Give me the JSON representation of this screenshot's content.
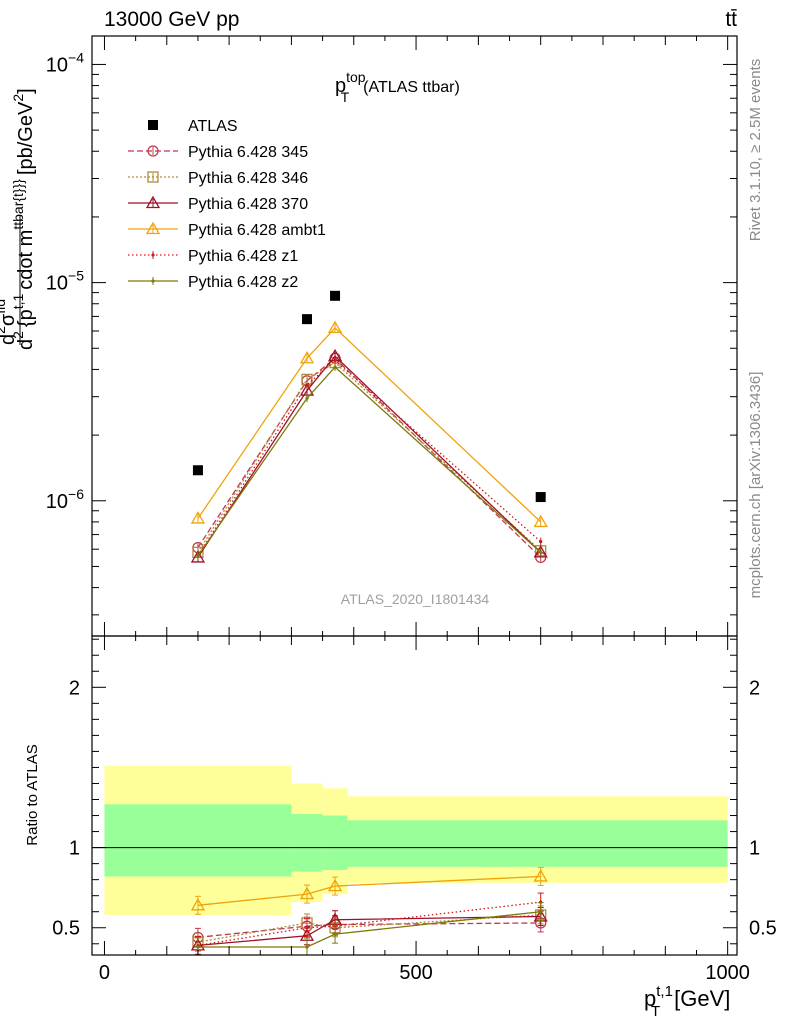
{
  "header": {
    "left": "13000 GeV pp",
    "right": "tt̄"
  },
  "side_text": {
    "rivet": "Rivet 3.1.10, ≥ 2.5M events",
    "mcplots": "mcplots.cern.ch [arXiv:1306.3436]"
  },
  "watermark": "ATLAS_2020_I1801434",
  "chart_data": {
    "type": "scatter",
    "title": {
      "main": "p",
      "sub": "T",
      "sup": "top",
      "rest": "(ATLAS ttbar)"
    },
    "xlabel": {
      "main": "p",
      "sub": "T",
      "sup": "t,1",
      "rest": "[GeV]"
    },
    "ylabel": "d²σ^fid / d² {p_T^t,1 cdot m^ttbar{t}}} [pb/GeV²]",
    "ylabel_parts": {
      "d1": "d",
      "d2": "d",
      "sigma": "σ",
      "sup_sigma": "fid",
      "sup_d1": "2",
      "sup_d2": "2",
      "bracket": "{p",
      "sub_t": "T",
      "sup_t": "t,1",
      "cdot": "cdot m",
      "sup_m": "ttbar{t}}}",
      "unit": "[pb/GeV",
      "unit_sup": "2",
      "unit_end": "]"
    },
    "ratio_ylabel": "Ratio to ATLAS",
    "xlim": [
      -20,
      1015
    ],
    "ylim": [
      2.4e-07,
      0.000135
    ],
    "yscale": "log",
    "ratio_ylim": [
      0.33,
      2.32
    ],
    "x_ticks": [
      0,
      500,
      1000
    ],
    "x_tick_labels": [
      "0",
      "500",
      "1000"
    ],
    "y_ticks": [
      1e-06,
      1e-05,
      0.0001
    ],
    "y_tick_labels": [
      {
        "base": "10",
        "exp": "−6"
      },
      {
        "base": "10",
        "exp": "−5"
      },
      {
        "base": "10",
        "exp": "−4"
      }
    ],
    "ratio_ticks": [
      0.5,
      1,
      2
    ],
    "ratio_tick_labels": [
      "0.5",
      "1",
      "2"
    ],
    "x": [
      150,
      325,
      370,
      700
    ],
    "bin_edges": [
      0,
      300,
      350,
      390,
      1000
    ],
    "data": {
      "name": "ATLAS",
      "values": [
        1.38e-06,
        6.8e-06,
        8.7e-06,
        1.04e-06
      ],
      "band_inner": [
        [
          0.82,
          1.27
        ],
        [
          0.85,
          1.21
        ],
        [
          0.86,
          1.2
        ],
        [
          0.88,
          1.17
        ],
        [
          0.9,
          1.17
        ]
      ],
      "band_outer": [
        [
          0.58,
          1.51
        ],
        [
          0.66,
          1.4
        ],
        [
          0.71,
          1.37
        ],
        [
          0.78,
          1.32
        ],
        [
          0.79,
          1.32
        ]
      ]
    },
    "series": [
      {
        "name": "Pythia 6.428 345",
        "color": "#c0384f",
        "dash": "6,3",
        "marker": "circle",
        "values": [
          6.1e-07,
          3.55e-06,
          4.5e-06,
          5.5e-07
        ],
        "ratio": [
          0.44,
          0.51,
          0.52,
          0.53
        ]
      },
      {
        "name": "Pythia 6.428 346",
        "color": "#b18a3d",
        "dash": "2,2",
        "marker": "square",
        "values": [
          5.8e-07,
          3.6e-06,
          4.3e-06,
          5.9e-07
        ],
        "ratio": [
          0.41,
          0.53,
          0.5,
          0.58
        ]
      },
      {
        "name": "Pythia 6.428 370",
        "color": "#9e1028",
        "dash": "",
        "marker": "triangle",
        "values": [
          5.5e-07,
          3.2e-06,
          4.6e-06,
          5.8e-07
        ],
        "ratio": [
          0.39,
          0.45,
          0.55,
          0.57
        ]
      },
      {
        "name": "Pythia 6.428 ambt1",
        "color": "#f0a30a",
        "dash": "",
        "marker": "triangle",
        "values": [
          8.3e-07,
          4.5e-06,
          6.2e-06,
          8e-07
        ],
        "ratio": [
          0.64,
          0.71,
          0.76,
          0.82
        ]
      },
      {
        "name": "Pythia 6.428 z1",
        "color": "#d01818",
        "dash": "1.5,2.5",
        "marker": "dot",
        "values": [
          5.6e-07,
          3.4e-06,
          4.4e-06,
          6.5e-07
        ],
        "ratio": [
          0.39,
          0.5,
          0.51,
          0.66
        ]
      },
      {
        "name": "Pythia 6.428 z2",
        "color": "#7c7a08",
        "dash": "",
        "marker": "dot",
        "values": [
          5.6e-07,
          2.95e-06,
          4.1e-06,
          5.8e-07
        ],
        "ratio": [
          0.38,
          0.38,
          0.46,
          0.6
        ]
      }
    ],
    "legend_position": "top-left",
    "grid": false
  }
}
